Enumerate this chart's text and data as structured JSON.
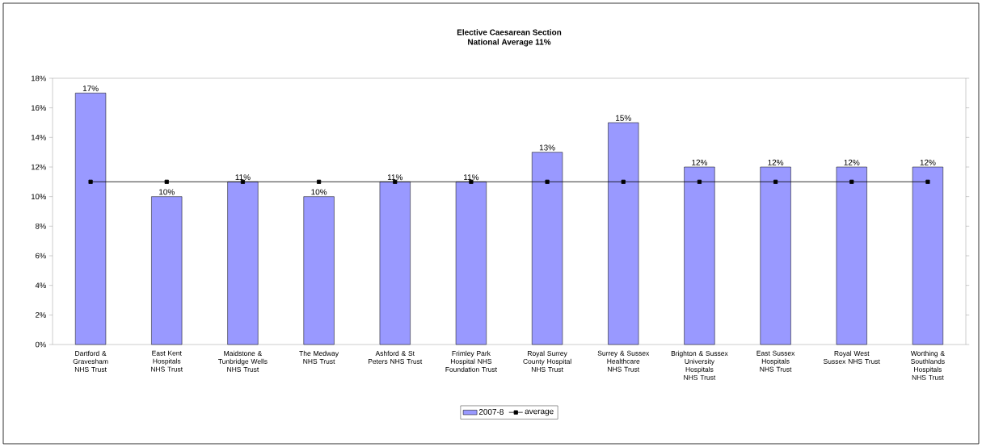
{
  "chart_data": {
    "type": "bar",
    "title": "Elective Caesarean Section",
    "subtitle": "National Average 11%",
    "categories": [
      "Dartford & Gravesham NHS Trust",
      "East Kent Hospitals NHS Trust",
      "Maidstone & Tunbridge Wells NHS Trust",
      "The Medway NHS Trust",
      "Ashford & St Peters NHS Trust",
      "Frimley Park Hospital NHS Foundation Trust",
      "Royal Surrey County Hospital NHS Trust",
      "Surrey & Sussex Healthcare NHS Trust",
      "Brighton & Sussex University Hospitals NHS Trust",
      "East Sussex Hospitals NHS Trust",
      "Royal West Sussex NHS Trust",
      "Worthing & Southlands Hospitals NHS Trust"
    ],
    "series": [
      {
        "name": "2007-8",
        "color": "#9999ff",
        "values": [
          17,
          10,
          11,
          10,
          11,
          11,
          13,
          15,
          12,
          12,
          12,
          12
        ],
        "value_labels": [
          "17%",
          "10%",
          "11%",
          "10%",
          "11%",
          "11%",
          "13%",
          "15%",
          "12%",
          "12%",
          "12%",
          "12%"
        ]
      },
      {
        "name": "average",
        "type": "line",
        "color": "#000000",
        "values": [
          11,
          11,
          11,
          11,
          11,
          11,
          11,
          11,
          11,
          11,
          11,
          11
        ]
      }
    ],
    "marker": "square",
    "line_style": "solid",
    "legend": "bottom",
    "ylim": [
      0,
      18
    ],
    "yticks": [
      {
        "value": 0,
        "label": "0%"
      },
      {
        "value": 2,
        "label": "2%"
      },
      {
        "value": 4,
        "label": "4%"
      },
      {
        "value": 6,
        "label": "6%"
      },
      {
        "value": 8,
        "label": "8%"
      },
      {
        "value": 10,
        "label": "10%"
      },
      {
        "value": 12,
        "label": "12%"
      },
      {
        "value": 14,
        "label": "14%"
      },
      {
        "value": 16,
        "label": "16%"
      },
      {
        "value": 18,
        "label": "18%"
      }
    ]
  }
}
